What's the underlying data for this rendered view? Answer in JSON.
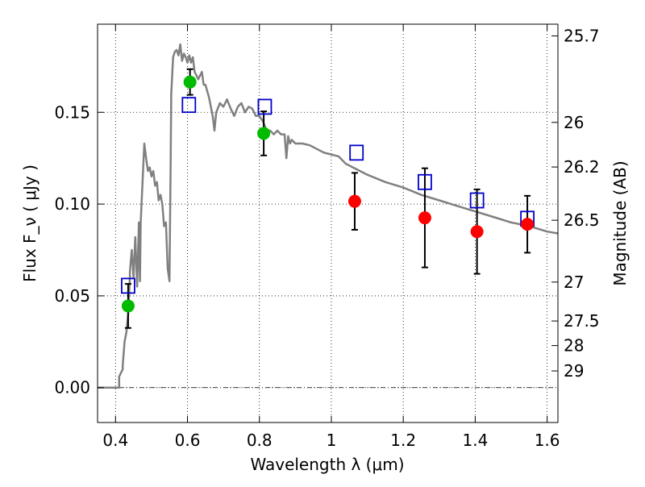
{
  "chart_data": {
    "type": "scatter",
    "title": "",
    "xlabel": "Wavelength  λ (μm)",
    "ylabel": "Flux  F_ν  ( μJy )",
    "ylabel_right": "Magnitude (AB)",
    "xlim": [
      0.35,
      1.63
    ],
    "ylim": [
      -0.019,
      0.198
    ],
    "x_ticks": [
      0.4,
      0.6,
      0.8,
      1.0,
      1.2,
      1.4,
      1.6
    ],
    "x_tick_labels": [
      "0.4",
      "0.6",
      "0.8",
      "1",
      "1.2",
      "1.4",
      "1.6"
    ],
    "y_ticks": [
      0.0,
      0.05,
      0.1,
      0.15
    ],
    "y_tick_labels": [
      "0.00",
      "0.05",
      "0.10",
      "0.15"
    ],
    "right_ticks": [
      {
        "label": "25.7",
        "flux": 0.1916
      },
      {
        "label": "26",
        "flux": 0.1445
      },
      {
        "label": "26.2",
        "flux": 0.1202
      },
      {
        "label": "26.5",
        "flux": 0.0912
      },
      {
        "label": "27",
        "flux": 0.0575
      },
      {
        "label": "27.5",
        "flux": 0.0363
      },
      {
        "label": "28",
        "flux": 0.0229
      },
      {
        "label": "29",
        "flux": 0.0091
      }
    ],
    "grid": true,
    "reference_line_y": 0.0,
    "colors": {
      "sed_model": "#808080",
      "observed_green": "#00bb00",
      "observed_red": "#ff0000",
      "model_squares": "#0000cc",
      "errorbar": "#000000"
    },
    "series": [
      {
        "role": "sed_model",
        "style": "line",
        "x": [
          0.35,
          0.35,
          0.36,
          0.37,
          0.38,
          0.39,
          0.4,
          0.41,
          0.41,
          0.42,
          0.42,
          0.425,
          0.43,
          0.435,
          0.44,
          0.44,
          0.445,
          0.45,
          0.455,
          0.46,
          0.465,
          0.468,
          0.47,
          0.475,
          0.48,
          0.485,
          0.49,
          0.495,
          0.5,
          0.505,
          0.51,
          0.515,
          0.52,
          0.525,
          0.53,
          0.535,
          0.54,
          0.545,
          0.55,
          0.553,
          0.555,
          0.56,
          0.565,
          0.57,
          0.575,
          0.58,
          0.585,
          0.59,
          0.595,
          0.6,
          0.605,
          0.61,
          0.615,
          0.62,
          0.625,
          0.63,
          0.635,
          0.64,
          0.645,
          0.65,
          0.66,
          0.67,
          0.675,
          0.68,
          0.69,
          0.7,
          0.71,
          0.72,
          0.73,
          0.74,
          0.75,
          0.76,
          0.77,
          0.78,
          0.79,
          0.8,
          0.81,
          0.82,
          0.83,
          0.84,
          0.85,
          0.86,
          0.87,
          0.875,
          0.88,
          0.885,
          0.89,
          0.9,
          0.92,
          0.94,
          0.96,
          0.98,
          1.0,
          1.02,
          1.04,
          1.06,
          1.08,
          1.1,
          1.15,
          1.2,
          1.25,
          1.3,
          1.35,
          1.4,
          1.45,
          1.5,
          1.55,
          1.6,
          1.63
        ],
        "y": [
          0.0,
          0.0,
          0.0,
          0.0,
          0.0,
          0.0,
          0.0,
          0.0,
          0.006,
          0.01,
          0.012,
          0.025,
          0.03,
          0.04,
          0.06,
          0.063,
          0.075,
          0.06,
          0.082,
          0.055,
          0.09,
          0.058,
          0.09,
          0.112,
          0.133,
          0.125,
          0.118,
          0.12,
          0.115,
          0.118,
          0.11,
          0.112,
          0.102,
          0.105,
          0.1,
          0.088,
          0.09,
          0.065,
          0.058,
          0.12,
          0.16,
          0.18,
          0.183,
          0.184,
          0.181,
          0.187,
          0.178,
          0.182,
          0.18,
          0.177,
          0.181,
          0.177,
          0.18,
          0.172,
          0.17,
          0.168,
          0.17,
          0.172,
          0.165,
          0.165,
          0.158,
          0.148,
          0.14,
          0.15,
          0.155,
          0.153,
          0.157,
          0.152,
          0.148,
          0.153,
          0.155,
          0.15,
          0.153,
          0.152,
          0.148,
          0.148,
          0.145,
          0.14,
          0.14,
          0.138,
          0.14,
          0.138,
          0.138,
          0.125,
          0.137,
          0.133,
          0.135,
          0.133,
          0.133,
          0.132,
          0.13,
          0.128,
          0.127,
          0.126,
          0.122,
          0.12,
          0.118,
          0.116,
          0.112,
          0.109,
          0.105,
          0.102,
          0.099,
          0.096,
          0.093,
          0.09,
          0.088,
          0.085,
          0.084
        ]
      },
      {
        "role": "model_photometry",
        "style": "open-square",
        "x": [
          0.435,
          0.604,
          0.815,
          1.07,
          1.26,
          1.405,
          1.545
        ],
        "y": [
          0.0555,
          0.154,
          0.153,
          0.128,
          0.112,
          0.102,
          0.092
        ]
      },
      {
        "role": "observed_photometry_green",
        "style": "filled-circle",
        "x": [
          0.435,
          0.607,
          0.812
        ],
        "y": [
          0.0445,
          0.1665,
          0.1385
        ],
        "yerr": [
          0.012,
          0.007,
          0.012
        ]
      },
      {
        "role": "observed_photometry_red",
        "style": "filled-circle",
        "x": [
          1.065,
          1.26,
          1.405,
          1.545
        ],
        "y": [
          0.1015,
          0.0925,
          0.085,
          0.089
        ],
        "yerr": [
          0.0155,
          0.027,
          0.023,
          0.0155
        ]
      }
    ]
  }
}
